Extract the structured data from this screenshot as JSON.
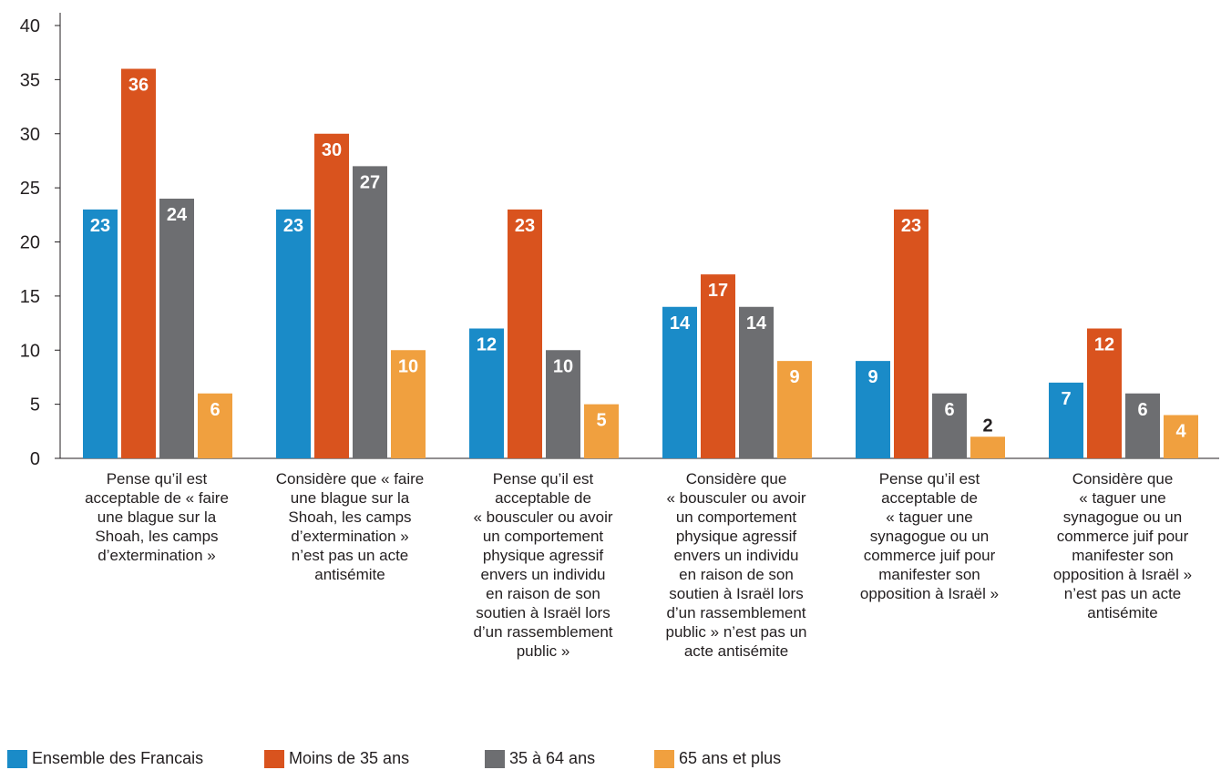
{
  "chart_data": {
    "type": "bar",
    "ylim": [
      0,
      40
    ],
    "yticks": [
      0,
      5,
      10,
      15,
      20,
      25,
      30,
      35,
      40
    ],
    "categories": [
      "Pense qu’il est\nacceptable de « faire\nune blague sur la\nShoah, les camps\nd’extermination »",
      "Considère que « faire\nune blague sur la\nShoah, les camps\nd’extermination »\nn’est pas un acte\nantisémite",
      "Pense qu’il est\nacceptable de\n« bousculer ou avoir\nun comportement\nphysique agressif\nenvers un individu\nen raison de son\nsoutien à Israël lors\nd’un rassemblement\npublic »",
      "Considère que\n« bousculer ou avoir\nun comportement\nphysique agressif\nenvers un individu\nen raison de son\nsoutien à Israël lors\nd’un rassemblement\npublic » n’est pas un\nacte antisémite",
      "Pense qu’il est\nacceptable de\n« taguer une\nsynagogue ou un\ncommerce juif pour\nmanifester son\nopposition à Israël »",
      "Considère que\n« taguer une\nsynagogue ou un\ncommerce juif pour\nmanifester son\nopposition à Israël »\nn’est pas un acte\nantisémite"
    ],
    "series": [
      {
        "name": "Ensemble des Francais",
        "color": "#1a8bc8",
        "values": [
          23,
          23,
          12,
          14,
          9,
          7
        ]
      },
      {
        "name": "Moins de 35 ans",
        "color": "#d9531e",
        "values": [
          36,
          30,
          23,
          17,
          23,
          12
        ]
      },
      {
        "name": "35 à 64 ans",
        "color": "#6d6e71",
        "values": [
          24,
          27,
          10,
          14,
          6,
          6
        ]
      },
      {
        "name": "65 ans et plus",
        "color": "#f0a03f",
        "values": [
          6,
          10,
          5,
          9,
          2,
          4
        ]
      }
    ],
    "legend_position": "bottom"
  }
}
